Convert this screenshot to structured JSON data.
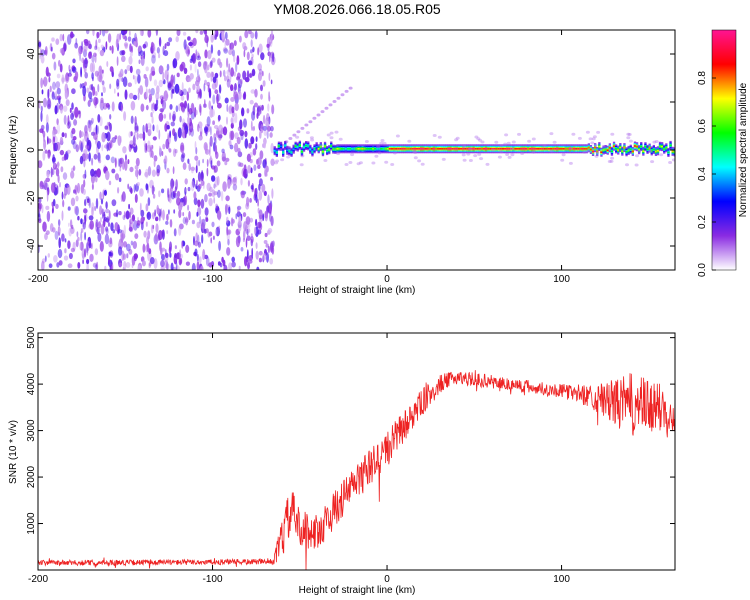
{
  "title": "YM08.2026.066.18.05.R05",
  "chart_data": [
    {
      "type": "heatmap",
      "name": "spectrogram",
      "xlabel": "Height of straight line (km)",
      "ylabel": "Frequency (Hz)",
      "xlim": [
        -200,
        165
      ],
      "ylim": [
        -50,
        50
      ],
      "xticks": [
        "-200",
        "-100",
        "0",
        "100"
      ],
      "xtick_values": [
        -200,
        -100,
        0,
        100
      ],
      "yticks": [
        "-40",
        "-20",
        "0",
        "20",
        "40"
      ],
      "ytick_values": [
        -40,
        -20,
        0,
        20,
        40
      ],
      "noise_region_km": [
        -200,
        -65
      ],
      "signal_frequency_hz": 0.5,
      "colorbar": {
        "label": "Normalized spectral amplitude",
        "range": [
          0,
          1
        ],
        "ticks": [
          "0.0",
          "0.2",
          "0.4",
          "0.6",
          "0.8"
        ],
        "tick_values": [
          0.0,
          0.2,
          0.4,
          0.6,
          0.8
        ],
        "colors": [
          "#ffffff",
          "#8a2be2",
          "#0000ff",
          "#00ffff",
          "#00ff00",
          "#ffff00",
          "#ff0000",
          "#ff1493"
        ]
      }
    },
    {
      "type": "line",
      "name": "snr",
      "xlabel": "Height of straight line (km)",
      "ylabel": "SNR (10 * v/v)",
      "xlim": [
        -200,
        165
      ],
      "ylim": [
        0,
        5100
      ],
      "xticks": [
        "-200",
        "-100",
        "0",
        "100"
      ],
      "xtick_values": [
        -200,
        -100,
        0,
        100
      ],
      "yticks": [
        "1000",
        "2000",
        "3000",
        "4000",
        "5000"
      ],
      "ytick_values": [
        1000,
        2000,
        3000,
        4000,
        5000
      ],
      "color": "#ee2222",
      "series_envelope": {
        "x": [
          -200,
          -150,
          -100,
          -65,
          -60,
          -55,
          -50,
          -40,
          -30,
          -20,
          -10,
          0,
          10,
          20,
          30,
          40,
          50,
          60,
          70,
          80,
          90,
          100,
          110,
          120,
          130,
          140,
          150,
          165
        ],
        "mean": [
          150,
          160,
          170,
          180,
          700,
          1300,
          900,
          800,
          1300,
          1800,
          2200,
          2600,
          3100,
          3600,
          4000,
          4150,
          4100,
          4050,
          4000,
          3950,
          3900,
          3850,
          3800,
          3700,
          3600,
          3550,
          3500,
          3450
        ],
        "spread": [
          60,
          60,
          60,
          60,
          500,
          500,
          400,
          400,
          400,
          400,
          400,
          400,
          350,
          300,
          200,
          150,
          150,
          150,
          150,
          150,
          150,
          150,
          200,
          300,
          500,
          700,
          600,
          500
        ]
      }
    }
  ]
}
